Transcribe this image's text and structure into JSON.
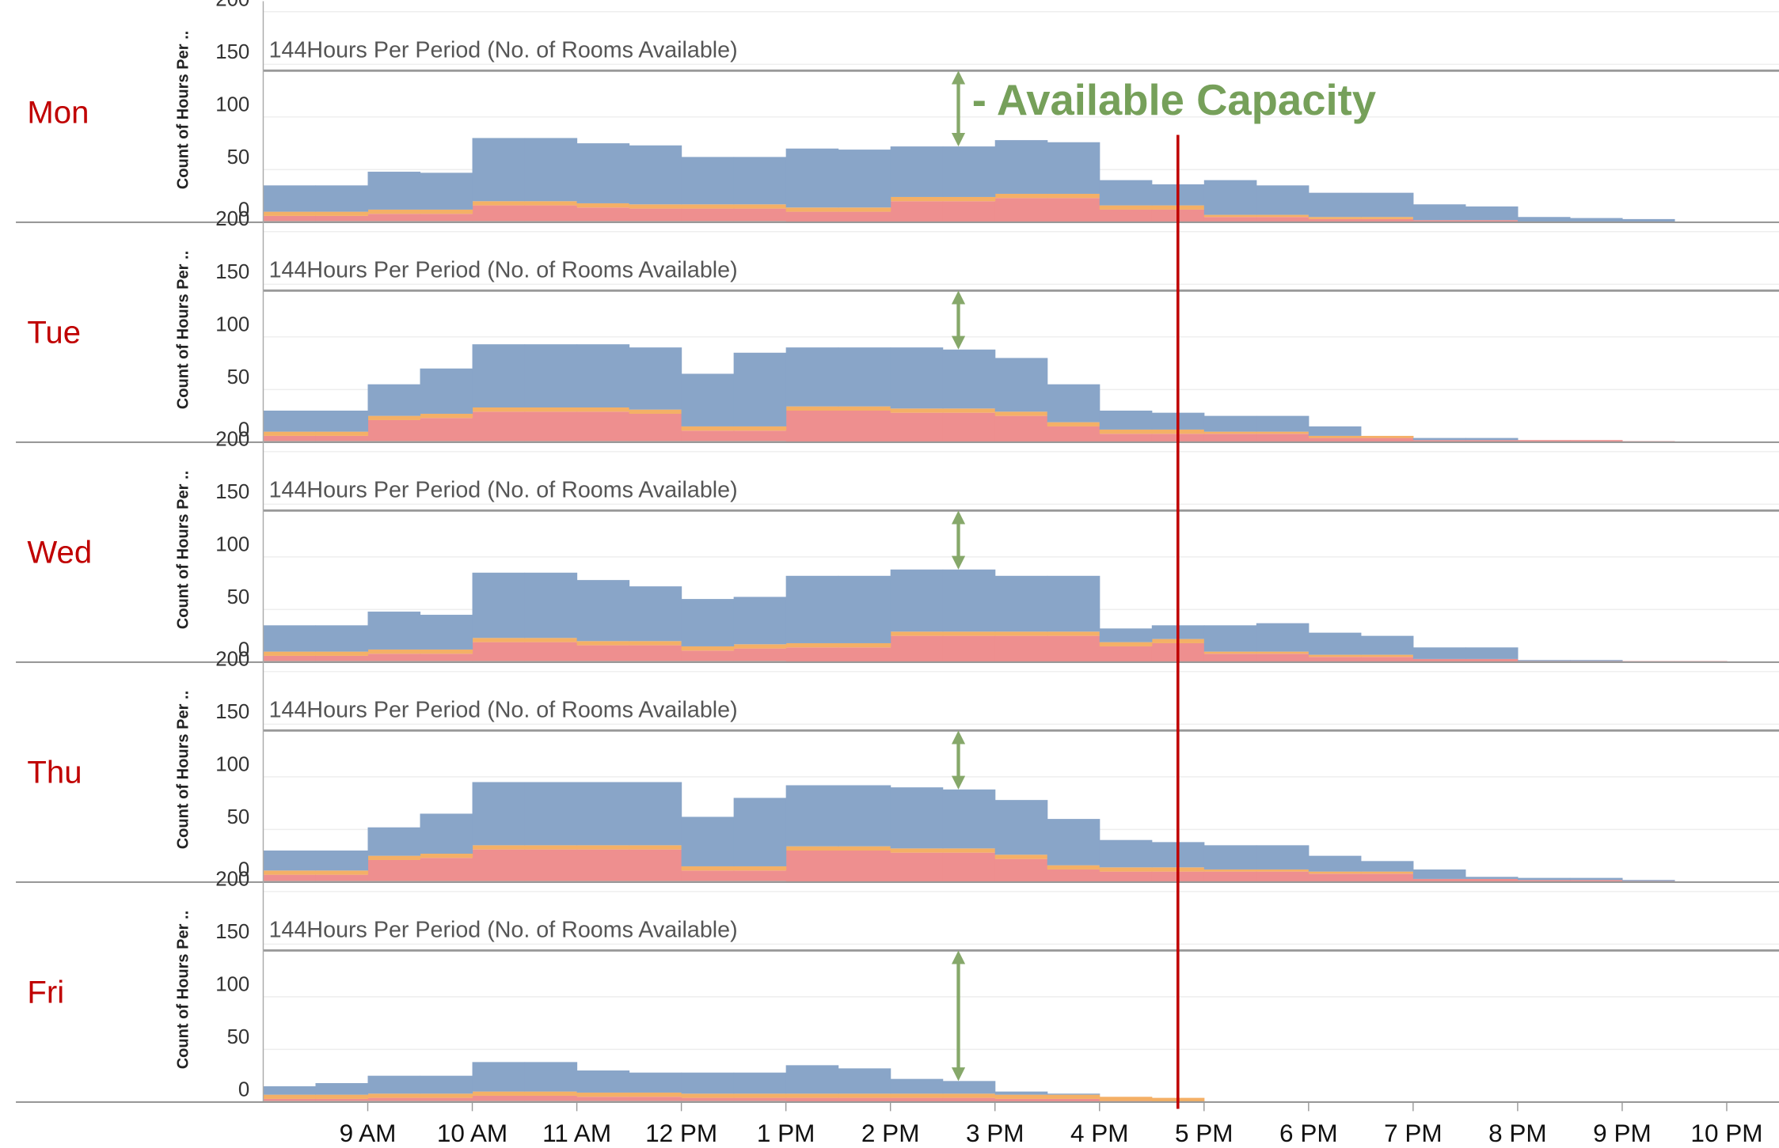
{
  "chart_data": [
    {
      "type": "area",
      "title": "Mon",
      "ylabel": "Count of Hours Per ..",
      "annotation": "- Available Capacity",
      "reference_line": {
        "value": 144,
        "label": "144Hours Per Period (No. of Rooms Available)"
      },
      "vline": 16.75,
      "xlim": [
        8,
        22.5
      ],
      "ylim": [
        0,
        210
      ],
      "yticks": [
        0,
        50,
        100,
        150,
        200
      ],
      "grid": true,
      "x": [
        8,
        8.5,
        9,
        9.5,
        10,
        10.5,
        11,
        11.5,
        12,
        12.5,
        13,
        13.5,
        14,
        14.5,
        15,
        15.5,
        16,
        16.5,
        17,
        17.5,
        18,
        18.5,
        19,
        19.5,
        20,
        20.5,
        21,
        21.5
      ],
      "series": [
        {
          "name": "teal",
          "color": "#8fc9bf",
          "values": [
            1,
            1,
            1,
            1,
            1,
            1,
            1,
            1,
            1,
            1,
            0,
            0,
            0,
            0,
            0,
            0,
            0,
            0,
            0,
            0,
            0,
            0,
            0,
            0,
            0,
            0,
            0,
            0
          ]
        },
        {
          "name": "red",
          "color": "#ee8f8f",
          "values": [
            5,
            5,
            7,
            7,
            15,
            15,
            13,
            12,
            12,
            12,
            10,
            10,
            20,
            20,
            23,
            23,
            12,
            12,
            5,
            5,
            3,
            3,
            2,
            2,
            0,
            0,
            0,
            0
          ]
        },
        {
          "name": "orange",
          "color": "#f4b066",
          "values": [
            4,
            4,
            4,
            4,
            4,
            4,
            4,
            4,
            4,
            4,
            4,
            4,
            4,
            4,
            4,
            4,
            4,
            4,
            2,
            2,
            2,
            2,
            0,
            0,
            0,
            0,
            0,
            0
          ]
        },
        {
          "name": "blue",
          "color": "#89a5c8",
          "values": [
            25,
            25,
            36,
            35,
            60,
            60,
            57,
            56,
            45,
            45,
            56,
            55,
            48,
            48,
            51,
            49,
            24,
            20,
            33,
            28,
            23,
            23,
            15,
            13,
            5,
            4,
            3,
            0
          ]
        }
      ]
    },
    {
      "type": "area",
      "title": "Tue",
      "ylabel": "Count of Hours Per ..",
      "reference_line": {
        "value": 144,
        "label": "144Hours Per Period (No. of Rooms Available)"
      },
      "vline": 16.75,
      "xlim": [
        8,
        22.5
      ],
      "ylim": [
        0,
        210
      ],
      "yticks": [
        0,
        50,
        100,
        150,
        200
      ],
      "grid": true,
      "x": [
        8,
        8.5,
        9,
        9.5,
        10,
        10.5,
        11,
        11.5,
        12,
        12.5,
        13,
        13.5,
        14,
        14.5,
        15,
        15.5,
        16,
        16.5,
        17,
        17.5,
        18,
        18.5,
        19,
        19.5,
        20,
        20.5,
        21,
        21.5
      ],
      "series": [
        {
          "name": "teal",
          "color": "#8fc9bf",
          "values": [
            1,
            1,
            1,
            1,
            1,
            1,
            1,
            1,
            1,
            1,
            0,
            0,
            0,
            0,
            0,
            0,
            0,
            0,
            0,
            0,
            0,
            0,
            0,
            0,
            0,
            0,
            0,
            0
          ]
        },
        {
          "name": "red",
          "color": "#ee8f8f",
          "values": [
            5,
            5,
            20,
            22,
            28,
            28,
            28,
            26,
            10,
            10,
            30,
            30,
            28,
            28,
            25,
            15,
            8,
            8,
            8,
            8,
            4,
            4,
            2,
            2,
            2,
            2,
            1,
            0
          ]
        },
        {
          "name": "orange",
          "color": "#f4b066",
          "values": [
            4,
            4,
            4,
            4,
            4,
            4,
            4,
            4,
            4,
            4,
            4,
            4,
            4,
            4,
            4,
            4,
            4,
            4,
            2,
            2,
            2,
            2,
            0,
            0,
            0,
            0,
            0,
            0
          ]
        },
        {
          "name": "blue",
          "color": "#89a5c8",
          "values": [
            20,
            20,
            30,
            43,
            60,
            60,
            60,
            59,
            50,
            70,
            56,
            56,
            58,
            56,
            51,
            36,
            18,
            16,
            15,
            15,
            9,
            0,
            2,
            2,
            0,
            0,
            0,
            0
          ]
        }
      ]
    },
    {
      "type": "area",
      "title": "Wed",
      "ylabel": "Count of Hours Per ..",
      "reference_line": {
        "value": 144,
        "label": "144Hours Per Period (No. of Rooms Available)"
      },
      "vline": 16.75,
      "xlim": [
        8,
        22.5
      ],
      "ylim": [
        0,
        210
      ],
      "yticks": [
        0,
        50,
        100,
        150,
        200
      ],
      "grid": true,
      "x": [
        8,
        8.5,
        9,
        9.5,
        10,
        10.5,
        11,
        11.5,
        12,
        12.5,
        13,
        13.5,
        14,
        14.5,
        15,
        15.5,
        16,
        16.5,
        17,
        17.5,
        18,
        18.5,
        19,
        19.5,
        20,
        20.5,
        21,
        21.5
      ],
      "series": [
        {
          "name": "teal",
          "color": "#8fc9bf",
          "values": [
            1,
            1,
            1,
            1,
            1,
            1,
            1,
            1,
            1,
            1,
            0,
            0,
            0,
            0,
            0,
            0,
            0,
            0,
            0,
            0,
            0,
            0,
            0,
            0,
            0,
            0,
            0,
            0
          ]
        },
        {
          "name": "red",
          "color": "#ee8f8f",
          "values": [
            5,
            5,
            7,
            7,
            18,
            18,
            15,
            15,
            10,
            12,
            14,
            14,
            25,
            25,
            25,
            25,
            15,
            18,
            8,
            8,
            5,
            5,
            3,
            3,
            1,
            1,
            1,
            1
          ]
        },
        {
          "name": "orange",
          "color": "#f4b066",
          "values": [
            4,
            4,
            4,
            4,
            4,
            4,
            4,
            4,
            4,
            4,
            4,
            4,
            4,
            4,
            4,
            4,
            4,
            4,
            2,
            2,
            2,
            2,
            0,
            0,
            0,
            0,
            0,
            0
          ]
        },
        {
          "name": "blue",
          "color": "#89a5c8",
          "values": [
            25,
            25,
            36,
            33,
            62,
            62,
            58,
            52,
            45,
            45,
            64,
            64,
            59,
            59,
            53,
            53,
            13,
            13,
            25,
            27,
            21,
            18,
            11,
            11,
            1,
            1,
            0,
            0
          ]
        }
      ]
    },
    {
      "type": "area",
      "title": "Thu",
      "ylabel": "Count of Hours Per ..",
      "reference_line": {
        "value": 144,
        "label": "144Hours Per Period (No. of Rooms Available)"
      },
      "vline": 16.75,
      "xlim": [
        8,
        22.5
      ],
      "ylim": [
        0,
        210
      ],
      "yticks": [
        0,
        50,
        100,
        150,
        200
      ],
      "grid": true,
      "x": [
        8,
        8.5,
        9,
        9.5,
        10,
        10.5,
        11,
        11.5,
        12,
        12.5,
        13,
        13.5,
        14,
        14.5,
        15,
        15.5,
        16,
        16.5,
        17,
        17.5,
        18,
        18.5,
        19,
        19.5,
        20,
        20.5,
        21,
        21.5
      ],
      "series": [
        {
          "name": "teal",
          "color": "#8fc9bf",
          "values": [
            1,
            1,
            1,
            1,
            1,
            1,
            1,
            1,
            1,
            1,
            0,
            0,
            0,
            0,
            0,
            0,
            0,
            0,
            0,
            0,
            0,
            0,
            0,
            0,
            0,
            0,
            0,
            0
          ]
        },
        {
          "name": "red",
          "color": "#ee8f8f",
          "values": [
            6,
            6,
            20,
            22,
            30,
            30,
            30,
            30,
            10,
            10,
            30,
            30,
            28,
            28,
            22,
            12,
            10,
            10,
            10,
            10,
            8,
            8,
            3,
            3,
            2,
            2,
            1,
            0
          ]
        },
        {
          "name": "orange",
          "color": "#f4b066",
          "values": [
            4,
            4,
            4,
            4,
            4,
            4,
            4,
            4,
            4,
            4,
            4,
            4,
            4,
            4,
            4,
            4,
            4,
            4,
            2,
            2,
            2,
            2,
            0,
            0,
            0,
            0,
            0,
            0
          ]
        },
        {
          "name": "blue",
          "color": "#89a5c8",
          "values": [
            19,
            19,
            27,
            38,
            60,
            60,
            60,
            60,
            47,
            65,
            58,
            58,
            58,
            56,
            52,
            44,
            26,
            24,
            23,
            23,
            15,
            10,
            9,
            2,
            2,
            2,
            1,
            0
          ]
        }
      ]
    },
    {
      "type": "area",
      "title": "Fri",
      "ylabel": "Count of Hours Per ..",
      "reference_line": {
        "value": 144,
        "label": "144Hours Per Period (No. of Rooms Available)"
      },
      "vline": 16.75,
      "xlim": [
        8,
        22.5
      ],
      "ylim": [
        0,
        210
      ],
      "yticks": [
        0,
        50,
        100,
        150,
        200
      ],
      "grid": true,
      "xticks": [
        {
          "value": 9,
          "label": "9 AM"
        },
        {
          "value": 10,
          "label": "10 AM"
        },
        {
          "value": 11,
          "label": "11 AM"
        },
        {
          "value": 12,
          "label": "12 PM"
        },
        {
          "value": 13,
          "label": "1 PM"
        },
        {
          "value": 14,
          "label": "2 PM"
        },
        {
          "value": 15,
          "label": "3 PM"
        },
        {
          "value": 16,
          "label": "4 PM"
        },
        {
          "value": 17,
          "label": "5 PM"
        },
        {
          "value": 18,
          "label": "6 PM"
        },
        {
          "value": 19,
          "label": "7 PM"
        },
        {
          "value": 20,
          "label": "8 PM"
        },
        {
          "value": 21,
          "label": "9 PM"
        },
        {
          "value": 22,
          "label": "10 PM"
        }
      ],
      "x": [
        8,
        8.5,
        9,
        9.5,
        10,
        10.5,
        11,
        11.5,
        12,
        12.5,
        13,
        13.5,
        14,
        14.5,
        15,
        15.5,
        16,
        16.5,
        17,
        17.5,
        18,
        18.5,
        19,
        19.5,
        20,
        20.5,
        21,
        21.5
      ],
      "series": [
        {
          "name": "teal",
          "color": "#8fc9bf",
          "values": [
            1,
            1,
            1,
            1,
            1,
            1,
            1,
            1,
            1,
            1,
            0,
            0,
            0,
            0,
            0,
            0,
            0,
            0,
            0,
            0,
            0,
            0,
            0,
            0,
            0,
            0,
            0,
            0
          ]
        },
        {
          "name": "red",
          "color": "#ee8f8f",
          "values": [
            2,
            2,
            3,
            3,
            5,
            5,
            4,
            4,
            3,
            3,
            4,
            4,
            4,
            4,
            3,
            3,
            1,
            0,
            0,
            0,
            0,
            0,
            0,
            0,
            0,
            0,
            0,
            0
          ]
        },
        {
          "name": "orange",
          "color": "#f4b066",
          "values": [
            4,
            4,
            4,
            4,
            4,
            4,
            4,
            4,
            4,
            4,
            4,
            4,
            4,
            4,
            4,
            4,
            4,
            4,
            0,
            0,
            0,
            0,
            0,
            0,
            0,
            0,
            0,
            0
          ]
        },
        {
          "name": "blue",
          "color": "#89a5c8",
          "values": [
            8,
            11,
            17,
            17,
            28,
            28,
            21,
            19,
            20,
            20,
            27,
            24,
            14,
            12,
            3,
            1,
            0,
            0,
            0,
            0,
            0,
            0,
            0,
            0,
            0,
            0,
            0,
            0
          ]
        }
      ]
    }
  ]
}
